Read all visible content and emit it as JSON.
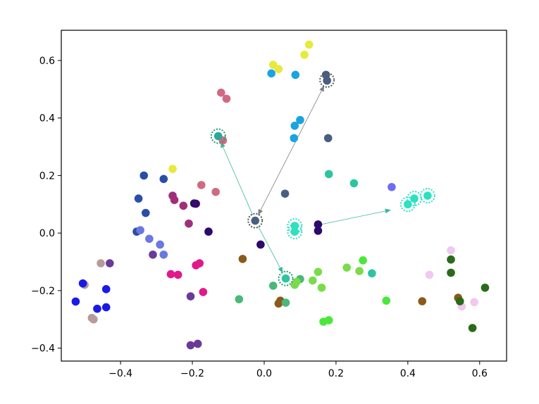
{
  "chart_data": {
    "type": "scatter",
    "title": "",
    "xlabel": "",
    "ylabel": "",
    "xlim": [
      -0.565,
      0.675
    ],
    "ylim": [
      -0.445,
      0.705
    ],
    "grid": false,
    "x_ticks": [
      -0.4,
      -0.2,
      0.0,
      0.2,
      0.4,
      0.6
    ],
    "x_tick_labels": [
      "−0.4",
      "−0.2",
      "0.0",
      "0.2",
      "0.4",
      "0.6"
    ],
    "y_ticks": [
      -0.4,
      -0.2,
      0.0,
      0.2,
      0.4,
      0.6
    ],
    "y_tick_labels": [
      "−0.4",
      "−0.2",
      "0.0",
      "0.2",
      "0.4",
      "0.6"
    ],
    "points": [
      {
        "x": 0.025,
        "y": 0.585,
        "color": "#e6ea3a"
      },
      {
        "x": 0.04,
        "y": 0.57,
        "color": "#e6ea3a"
      },
      {
        "x": 0.125,
        "y": 0.655,
        "color": "#e6ea3a"
      },
      {
        "x": 0.112,
        "y": 0.62,
        "color": "#e6ea3a"
      },
      {
        "x": -0.255,
        "y": 0.223,
        "color": "#e6ea3a"
      },
      {
        "x": 0.02,
        "y": 0.555,
        "color": "#1aa3e0"
      },
      {
        "x": 0.087,
        "y": 0.55,
        "color": "#1aa3e0"
      },
      {
        "x": 0.1,
        "y": 0.393,
        "color": "#1aa3e0"
      },
      {
        "x": 0.085,
        "y": 0.373,
        "color": "#1aa3e0"
      },
      {
        "x": 0.083,
        "y": 0.33,
        "color": "#1aa3e0"
      },
      {
        "x": 0.172,
        "y": 0.55,
        "color": "#4a5e80"
      },
      {
        "x": 0.175,
        "y": 0.53,
        "color": "#4a5e80"
      },
      {
        "x": 0.178,
        "y": 0.33,
        "color": "#4a5e80"
      },
      {
        "x": 0.058,
        "y": 0.137,
        "color": "#4a5e80"
      },
      {
        "x": -0.025,
        "y": 0.043,
        "color": "#4a5e80"
      },
      {
        "x": -0.12,
        "y": 0.488,
        "color": "#d06a82"
      },
      {
        "x": -0.105,
        "y": 0.467,
        "color": "#d06a82"
      },
      {
        "x": -0.115,
        "y": 0.322,
        "color": "#d06a82"
      },
      {
        "x": -0.175,
        "y": 0.167,
        "color": "#d06a82"
      },
      {
        "x": -0.135,
        "y": 0.143,
        "color": "#d06a82"
      },
      {
        "x": -0.128,
        "y": 0.337,
        "color": "#2aa89c"
      },
      {
        "x": 0.18,
        "y": 0.205,
        "color": "#2ec4a0"
      },
      {
        "x": 0.25,
        "y": 0.173,
        "color": "#2ec4a0"
      },
      {
        "x": 0.3,
        "y": -0.14,
        "color": "#2ec4a0"
      },
      {
        "x": 0.06,
        "y": -0.158,
        "color": "#2ec4a0"
      },
      {
        "x": 0.355,
        "y": 0.16,
        "color": "#6e6ef0"
      },
      {
        "x": 0.4,
        "y": 0.1,
        "color": "#2de0c0"
      },
      {
        "x": 0.418,
        "y": 0.12,
        "color": "#2de0c0"
      },
      {
        "x": 0.455,
        "y": 0.13,
        "color": "#2de0c0"
      },
      {
        "x": 0.085,
        "y": 0.025,
        "color": "#2de0c0"
      },
      {
        "x": 0.085,
        "y": 0.005,
        "color": "#2de0c0"
      },
      {
        "x": 0.15,
        "y": 0.03,
        "color": "#2b0a6e"
      },
      {
        "x": 0.15,
        "y": 0.008,
        "color": "#2b0a6e"
      },
      {
        "x": -0.155,
        "y": 0.005,
        "color": "#2b0a6e"
      },
      {
        "x": -0.195,
        "y": 0.103,
        "color": "#2b0a6e"
      },
      {
        "x": -0.01,
        "y": -0.04,
        "color": "#2b0a6e"
      },
      {
        "x": -0.335,
        "y": 0.2,
        "color": "#2a4ea8"
      },
      {
        "x": -0.28,
        "y": 0.188,
        "color": "#2a4ea8"
      },
      {
        "x": -0.35,
        "y": 0.12,
        "color": "#2a4ea8"
      },
      {
        "x": -0.33,
        "y": 0.07,
        "color": "#2a4ea8"
      },
      {
        "x": -0.355,
        "y": 0.005,
        "color": "#2a4ea8"
      },
      {
        "x": -0.345,
        "y": 0.01,
        "color": "#6a78e0"
      },
      {
        "x": -0.32,
        "y": -0.02,
        "color": "#6a78e0"
      },
      {
        "x": -0.29,
        "y": -0.04,
        "color": "#6a78e0"
      },
      {
        "x": -0.28,
        "y": -0.075,
        "color": "#6a78e0"
      },
      {
        "x": -0.31,
        "y": -0.075,
        "color": "#6a3a9a"
      },
      {
        "x": -0.255,
        "y": 0.13,
        "color": "#a02f7a"
      },
      {
        "x": -0.25,
        "y": 0.115,
        "color": "#a02f7a"
      },
      {
        "x": -0.225,
        "y": 0.095,
        "color": "#a02f7a"
      },
      {
        "x": -0.21,
        "y": 0.033,
        "color": "#a02f7a"
      },
      {
        "x": -0.19,
        "y": 0.102,
        "color": "#3a0a6e"
      },
      {
        "x": -0.26,
        "y": -0.143,
        "color": "#e01a8a"
      },
      {
        "x": -0.24,
        "y": -0.145,
        "color": "#e01a8a"
      },
      {
        "x": -0.19,
        "y": -0.112,
        "color": "#e01a8a"
      },
      {
        "x": -0.18,
        "y": -0.105,
        "color": "#e01a8a"
      },
      {
        "x": -0.17,
        "y": -0.205,
        "color": "#e01a8a"
      },
      {
        "x": -0.205,
        "y": -0.22,
        "color": "#6a3a9a"
      },
      {
        "x": -0.205,
        "y": -0.39,
        "color": "#6a3a9a"
      },
      {
        "x": -0.185,
        "y": -0.385,
        "color": "#6a3a9a"
      },
      {
        "x": -0.43,
        "y": -0.105,
        "color": "#6a3a9a"
      },
      {
        "x": -0.455,
        "y": -0.105,
        "color": "#b89a9a"
      },
      {
        "x": -0.5,
        "y": -0.18,
        "color": "#b89a9a"
      },
      {
        "x": -0.48,
        "y": -0.295,
        "color": "#b89a9a"
      },
      {
        "x": -0.475,
        "y": -0.3,
        "color": "#b89a9a"
      },
      {
        "x": -0.505,
        "y": -0.175,
        "color": "#1a1ae8"
      },
      {
        "x": -0.44,
        "y": -0.195,
        "color": "#1a1ae8"
      },
      {
        "x": -0.525,
        "y": -0.238,
        "color": "#1a1ae8"
      },
      {
        "x": -0.465,
        "y": -0.263,
        "color": "#1a1ae8"
      },
      {
        "x": -0.44,
        "y": -0.258,
        "color": "#1a1ae8"
      },
      {
        "x": -0.06,
        "y": -0.09,
        "color": "#8a5a1a"
      },
      {
        "x": 0.045,
        "y": -0.235,
        "color": "#8a5a1a"
      },
      {
        "x": 0.04,
        "y": -0.245,
        "color": "#8a5a1a"
      },
      {
        "x": 0.44,
        "y": -0.237,
        "color": "#8a5a1a"
      },
      {
        "x": 0.54,
        "y": -0.225,
        "color": "#8a5a1a"
      },
      {
        "x": -0.07,
        "y": -0.23,
        "color": "#4ab87a"
      },
      {
        "x": 0.025,
        "y": -0.183,
        "color": "#4ab87a"
      },
      {
        "x": 0.06,
        "y": -0.242,
        "color": "#4ab87a"
      },
      {
        "x": 0.1,
        "y": -0.16,
        "color": "#4ab87a"
      },
      {
        "x": 0.09,
        "y": -0.17,
        "color": "#7adc4a"
      },
      {
        "x": 0.085,
        "y": -0.18,
        "color": "#7adc4a"
      },
      {
        "x": 0.135,
        "y": -0.165,
        "color": "#7adc4a"
      },
      {
        "x": 0.15,
        "y": -0.135,
        "color": "#7adc4a"
      },
      {
        "x": 0.16,
        "y": -0.19,
        "color": "#7adc4a"
      },
      {
        "x": 0.23,
        "y": -0.12,
        "color": "#7adc4a"
      },
      {
        "x": 0.265,
        "y": -0.132,
        "color": "#7adc4a"
      },
      {
        "x": 0.275,
        "y": -0.095,
        "color": "#4ae83a"
      },
      {
        "x": 0.165,
        "y": -0.308,
        "color": "#4ae83a"
      },
      {
        "x": 0.18,
        "y": -0.303,
        "color": "#4ae83a"
      },
      {
        "x": 0.34,
        "y": -0.235,
        "color": "#4ae83a"
      },
      {
        "x": 0.52,
        "y": -0.06,
        "color": "#f0c8f0"
      },
      {
        "x": 0.46,
        "y": -0.145,
        "color": "#f0c8f0"
      },
      {
        "x": 0.55,
        "y": -0.255,
        "color": "#f0c8f0"
      },
      {
        "x": 0.585,
        "y": -0.24,
        "color": "#f0c8f0"
      },
      {
        "x": 0.52,
        "y": -0.092,
        "color": "#2a6a1a"
      },
      {
        "x": 0.52,
        "y": -0.138,
        "color": "#2a6a1a"
      },
      {
        "x": 0.615,
        "y": -0.19,
        "color": "#2a6a1a"
      },
      {
        "x": 0.58,
        "y": -0.33,
        "color": "#2a6a1a"
      },
      {
        "x": 0.545,
        "y": -0.237,
        "color": "#2a6a1a"
      }
    ],
    "highlights": [
      {
        "x": -0.025,
        "y": 0.043,
        "color": "#555555"
      },
      {
        "x": 0.175,
        "y": 0.532,
        "color": "#555555"
      },
      {
        "x": -0.128,
        "y": 0.337,
        "color": "#1aa06a"
      },
      {
        "x": 0.06,
        "y": -0.158,
        "color": "#1aa06a"
      },
      {
        "x": 0.085,
        "y": 0.025,
        "color": "#2de0c0"
      },
      {
        "x": 0.085,
        "y": 0.005,
        "color": "#2de0c0"
      },
      {
        "x": 0.4,
        "y": 0.1,
        "color": "#2de0c0"
      },
      {
        "x": 0.418,
        "y": 0.12,
        "color": "#2de0c0"
      },
      {
        "x": 0.455,
        "y": 0.13,
        "color": "#2de0c0"
      }
    ],
    "arrows": [
      {
        "x1": -0.025,
        "y1": 0.043,
        "x2": 0.175,
        "y2": 0.532,
        "color": "#808080",
        "double": true
      },
      {
        "x1": -0.025,
        "y1": 0.043,
        "x2": -0.128,
        "y2": 0.337,
        "color": "#3ab89a",
        "double": false
      },
      {
        "x1": -0.025,
        "y1": 0.043,
        "x2": 0.06,
        "y2": -0.158,
        "color": "#3ab89a",
        "double": false
      },
      {
        "x1": 0.12,
        "y1": 0.02,
        "x2": 0.37,
        "y2": 0.085,
        "color": "#3ab89a",
        "double": true
      }
    ]
  }
}
